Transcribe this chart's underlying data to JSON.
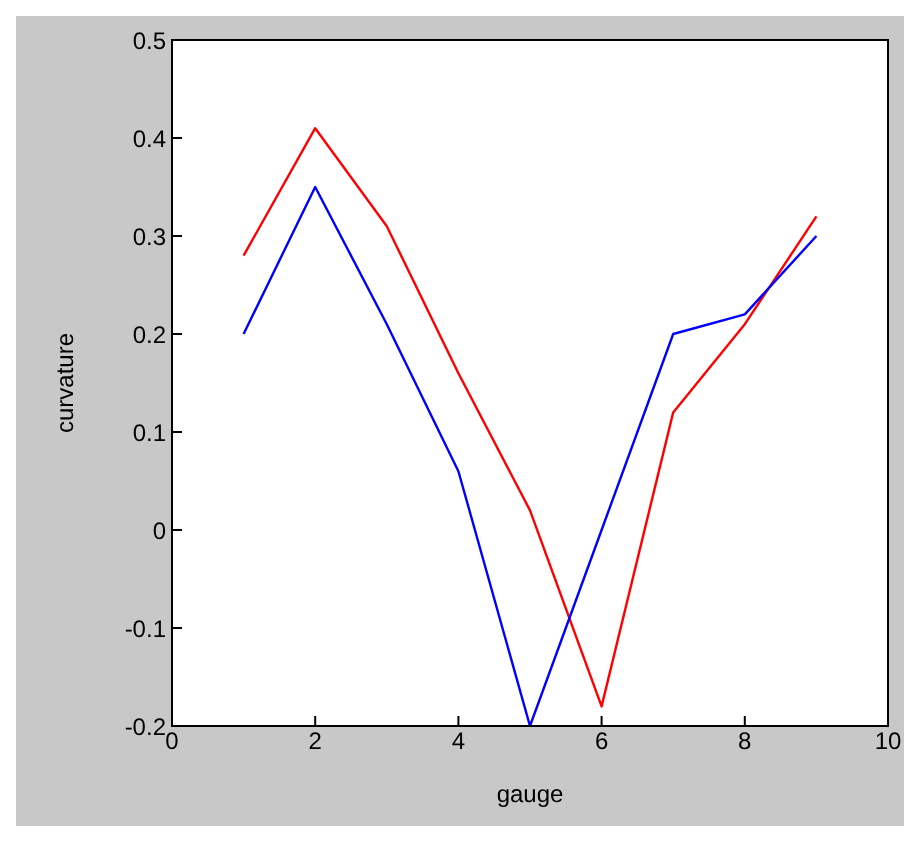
{
  "chart_data": {
    "type": "line",
    "xlabel": "gauge",
    "ylabel": "curvature",
    "x": [
      1,
      2,
      3,
      4,
      5,
      6,
      7,
      8,
      9
    ],
    "series": [
      {
        "color": "#ff0000",
        "values": [
          0.28,
          0.41,
          0.31,
          0.16,
          0.02,
          -0.18,
          0.12,
          0.21,
          0.32
        ]
      },
      {
        "color": "#0000ff",
        "values": [
          0.2,
          0.35,
          0.21,
          0.06,
          -0.2,
          0,
          0.2,
          0.22,
          0.3
        ]
      }
    ],
    "xlim": [
      0,
      10
    ],
    "xticks": [
      0,
      2,
      4,
      6,
      8,
      10
    ],
    "ylim": [
      -0.2,
      0.5
    ],
    "yticks": [
      -0.2,
      -0.1,
      0,
      0.1,
      0.2,
      0.3,
      0.4,
      0.5
    ],
    "legend": false,
    "marker": "none",
    "line_style": "solid"
  }
}
